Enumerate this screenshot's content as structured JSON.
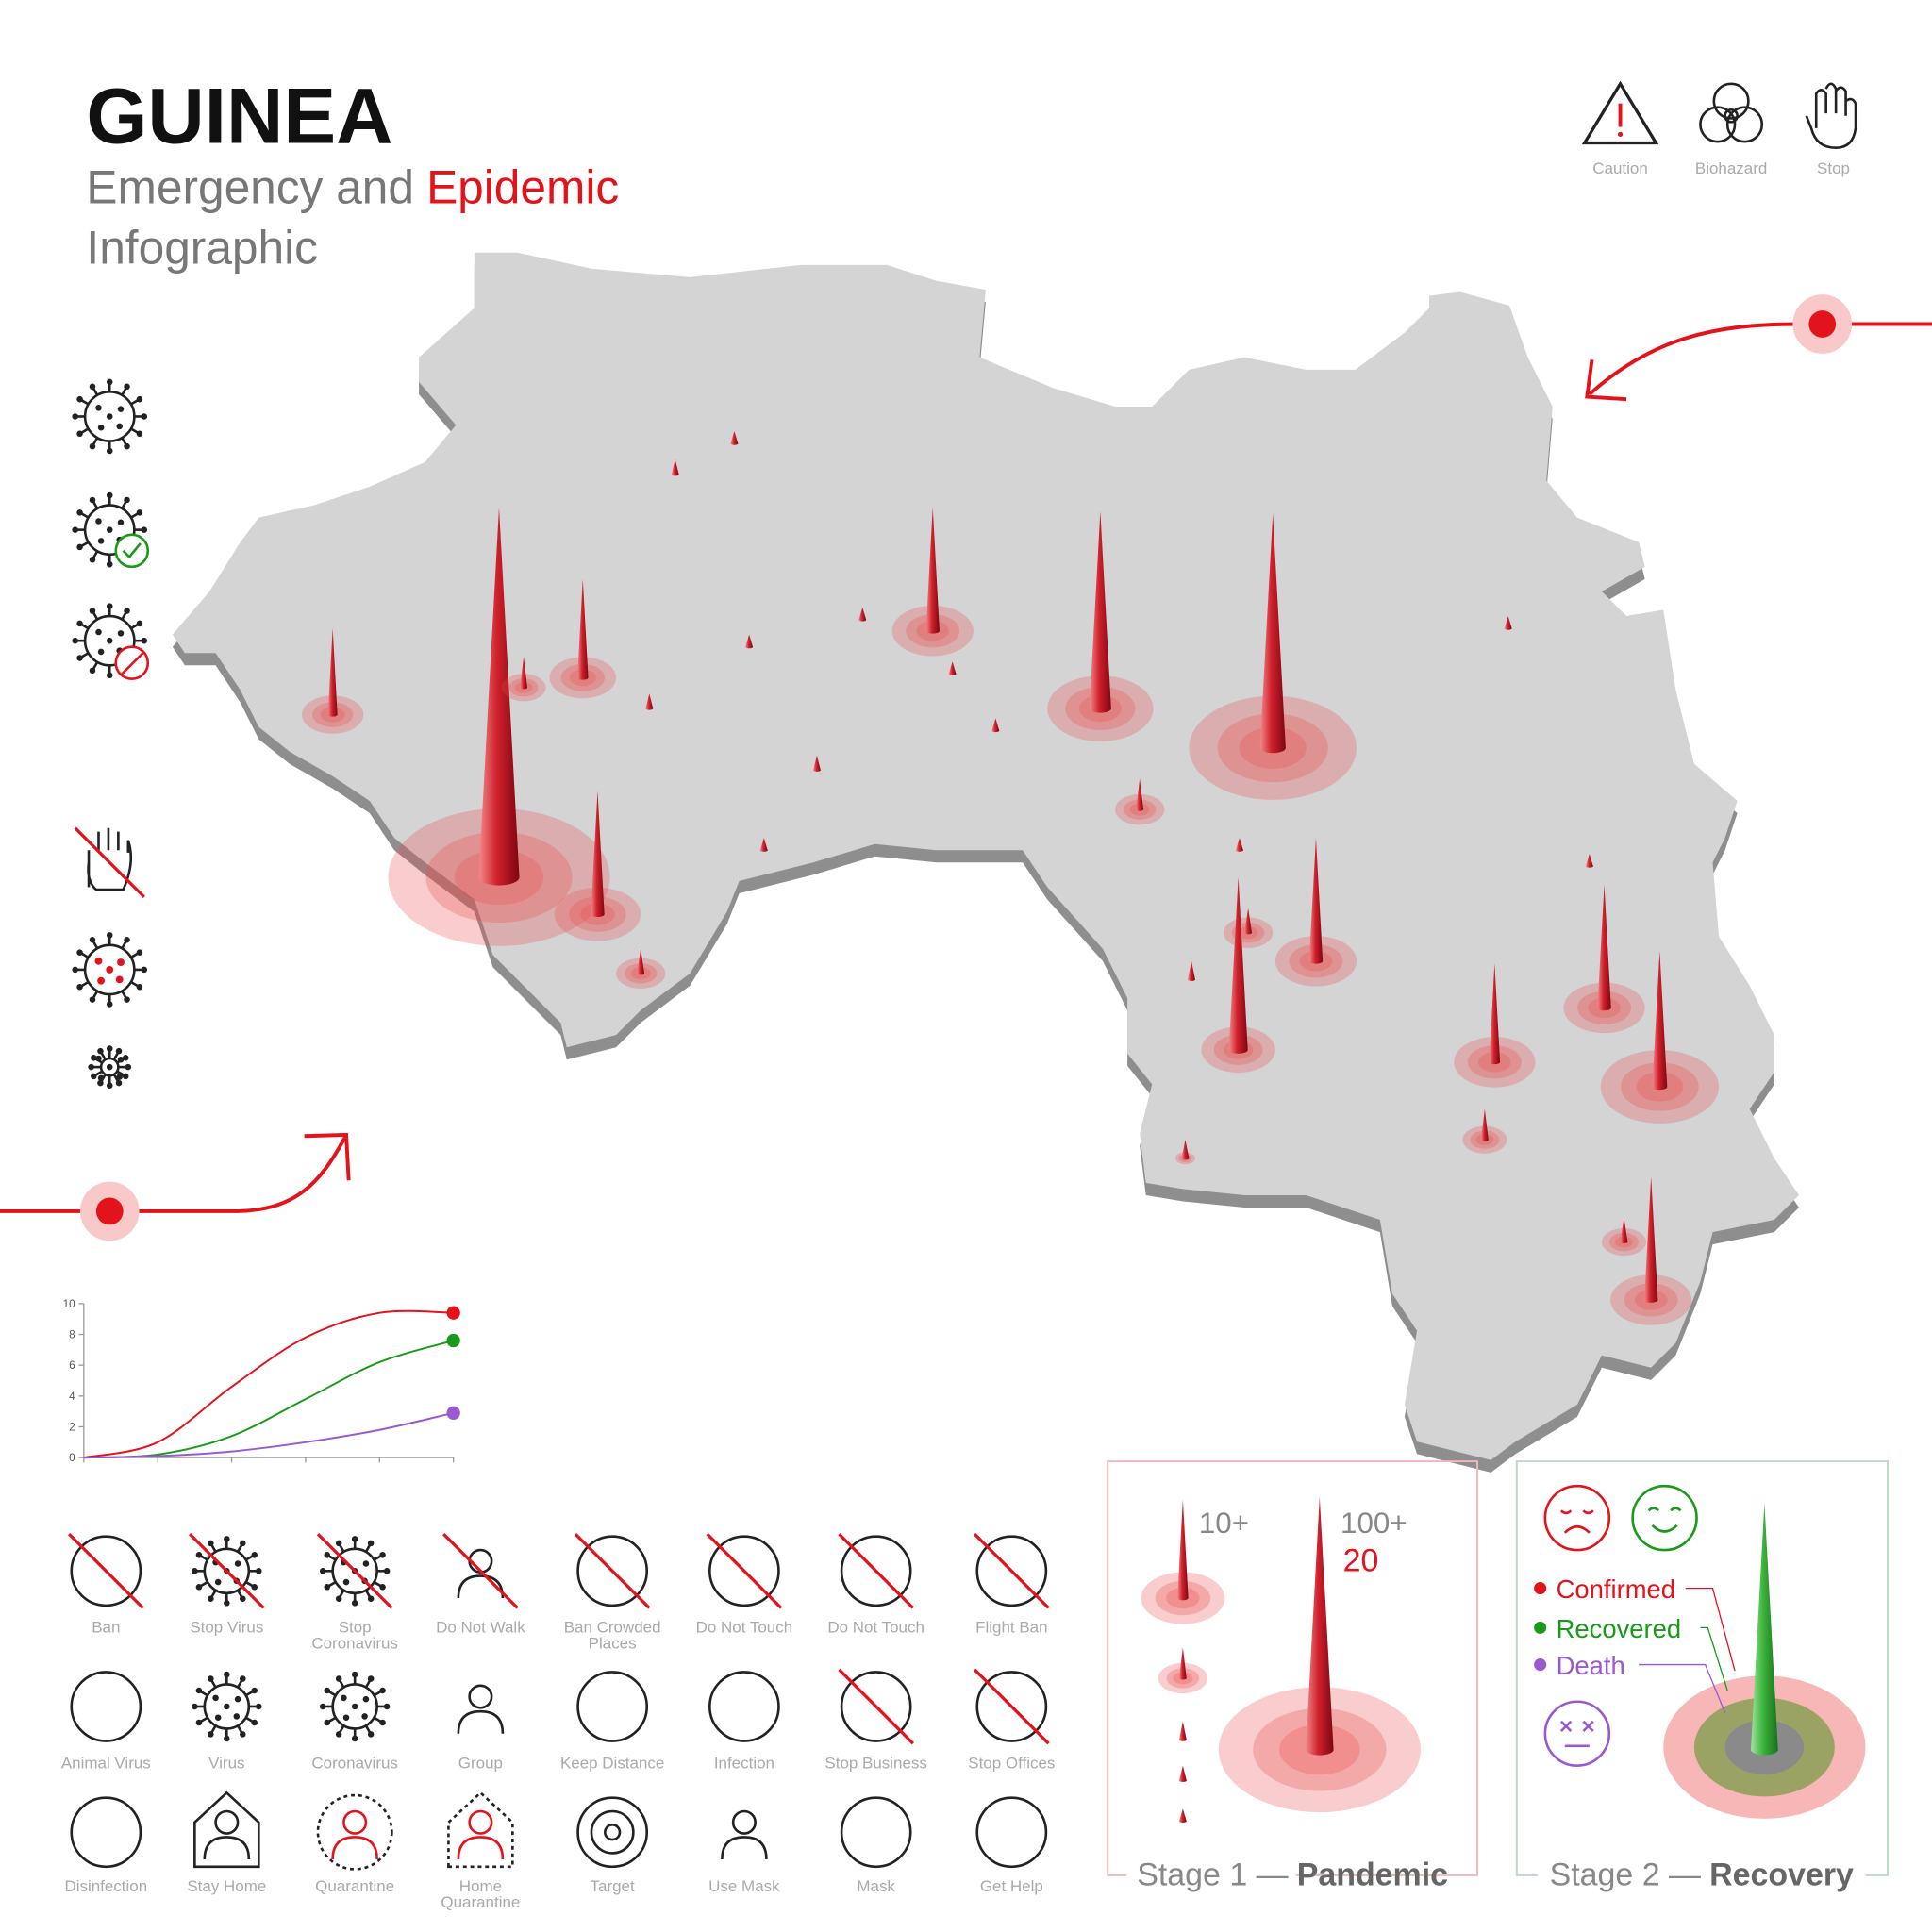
{
  "header": {
    "title": "GUINEA",
    "subtitle": [
      "Emergency and",
      "Epidemic"
    ],
    "subtitle_line2": "Infographic"
  },
  "top_icons": [
    "Caution",
    "Biohazard",
    "Stop"
  ],
  "chart_data": {
    "type": "line",
    "categories": [
      null,
      null,
      null,
      null,
      null,
      null
    ],
    "series": [
      {
        "color": "#e3131b",
        "values": [
          0,
          1.0,
          4.6,
          7.8,
          9.4,
          9.4
        ]
      },
      {
        "color": "#1a9a1a",
        "values": [
          0,
          0.2,
          1.4,
          3.8,
          6.2,
          7.6
        ]
      },
      {
        "color": "#9b59d0",
        "values": [
          0,
          0.1,
          0.4,
          1.0,
          1.8,
          2.9
        ]
      }
    ],
    "ylim": [
      0,
      10
    ],
    "yticks": [
      0,
      2,
      4,
      6,
      8,
      10
    ]
  },
  "icons": [
    [
      "Ban"
    ],
    [
      "Stop Virus"
    ],
    [
      "Stop",
      "Coronavirus"
    ],
    [
      "Do Not Walk"
    ],
    [
      "Ban Crowded",
      "Places"
    ],
    [
      "Do Not Touch"
    ],
    [
      "Do Not Touch"
    ],
    [
      "Flight Ban"
    ],
    [
      "Animal Virus"
    ],
    [
      "Virus"
    ],
    [
      "Coronavirus"
    ],
    [
      "Group"
    ],
    [
      "Keep Distance"
    ],
    [
      "Infection"
    ],
    [
      "Stop Business"
    ],
    [
      "Stop Offices"
    ],
    [
      "Disinfection"
    ],
    [
      "Stay Home"
    ],
    [
      "Quarantine"
    ],
    [
      "Home",
      "Quarantine"
    ],
    [
      "Target"
    ],
    [
      "Use Mask"
    ],
    [
      "Mask"
    ],
    [
      "Get Help"
    ]
  ],
  "stage1": {
    "small_label": "10+",
    "large_label": "100+",
    "large_value": 20,
    "caption": [
      "Stage 1 —",
      "Pandemic"
    ]
  },
  "stage2": {
    "legend": [
      "Confirmed",
      "Recovered",
      "Death"
    ],
    "caption": [
      "Stage 2 —",
      "Recovery"
    ]
  }
}
